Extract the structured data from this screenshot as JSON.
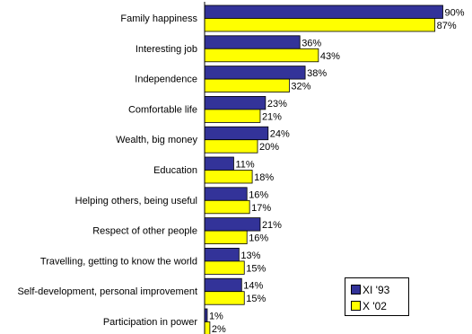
{
  "chart_data": {
    "type": "bar",
    "orientation": "horizontal",
    "categories": [
      "Family happiness",
      "Interesting job",
      "Independence",
      "Comfortable life",
      "Wealth, big money",
      "Education",
      "Helping others, being useful",
      "Respect of other people",
      "Travelling, getting to know the world",
      "Self-development, personal improvement",
      "Participation in power"
    ],
    "series": [
      {
        "name": "XI '93",
        "color": "#333399",
        "values": [
          90,
          36,
          38,
          23,
          24,
          11,
          16,
          21,
          13,
          14,
          1
        ]
      },
      {
        "name": "X '02",
        "color": "#ffff00",
        "values": [
          87,
          43,
          32,
          21,
          20,
          18,
          17,
          16,
          15,
          15,
          2
        ]
      }
    ],
    "value_suffix": "%",
    "xlim": [
      0,
      100
    ],
    "legend_position": "bottom-right",
    "grid": false
  }
}
